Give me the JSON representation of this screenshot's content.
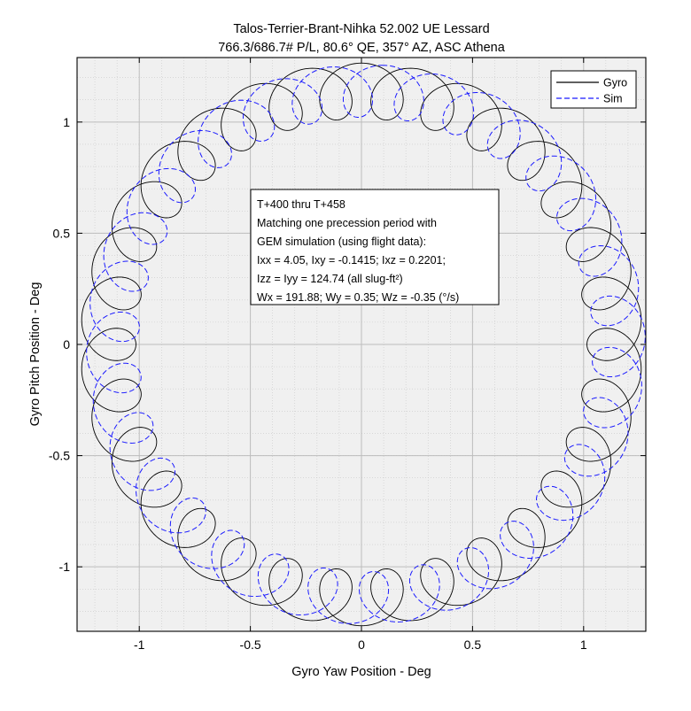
{
  "chart_data": {
    "type": "line",
    "title": "Talos-Terrier-Brant-Nihka 52.002 UE Lessard",
    "subtitle": "766.3/686.7# P/L, 80.6° QE, 357° AZ, ASC Athena",
    "xlabel": "Gyro Yaw Position - Deg",
    "ylabel": "Gyro Pitch Position - Deg",
    "xlim": [
      -1.28,
      1.28
    ],
    "ylim": [
      -1.29,
      1.29
    ],
    "xticks": [
      -1,
      -0.5,
      0,
      0.5,
      1
    ],
    "yticks": [
      -1,
      -0.5,
      0,
      0.5,
      1
    ],
    "xtick_labels": [
      "-1",
      "-0.5",
      "0",
      "0.5",
      "1"
    ],
    "ytick_labels": [
      "-1",
      "-0.5",
      "0",
      "0.5",
      "1"
    ],
    "grid": true,
    "minor_grid": true,
    "legend_position": "top-right",
    "series": [
      {
        "name": "Gyro",
        "color": "#000000",
        "style": "solid",
        "precession_radius_deg": 1.14,
        "precession_center_deg": [
          0.0,
          0.0
        ],
        "nutation_radius_deg": 0.125,
        "loops_per_precession": 31,
        "start_angle_deg": 90,
        "phase_offset_deg": 0
      },
      {
        "name": "Sim",
        "color": "#1a1aff",
        "style": "dashed",
        "precession_radius_deg": 1.14,
        "precession_center_deg": [
          0.02,
          0.0
        ],
        "nutation_radius_deg": 0.118,
        "loops_per_precession": 31,
        "start_angle_deg": 90,
        "phase_offset_deg": -4
      }
    ],
    "annotation_lines": [
      "T+400 thru T+458",
      "Matching one precession period with",
      "GEM simulation (using flight data):",
      "Ixx = 4.05, Ixy = -0.1415; Ixz = 0.2201;",
      "Izz = Iyy = 124.74 (all slug-ft²)",
      "Wx = 191.88; Wy = 0.35; Wz = -0.35 (°/s)"
    ]
  }
}
